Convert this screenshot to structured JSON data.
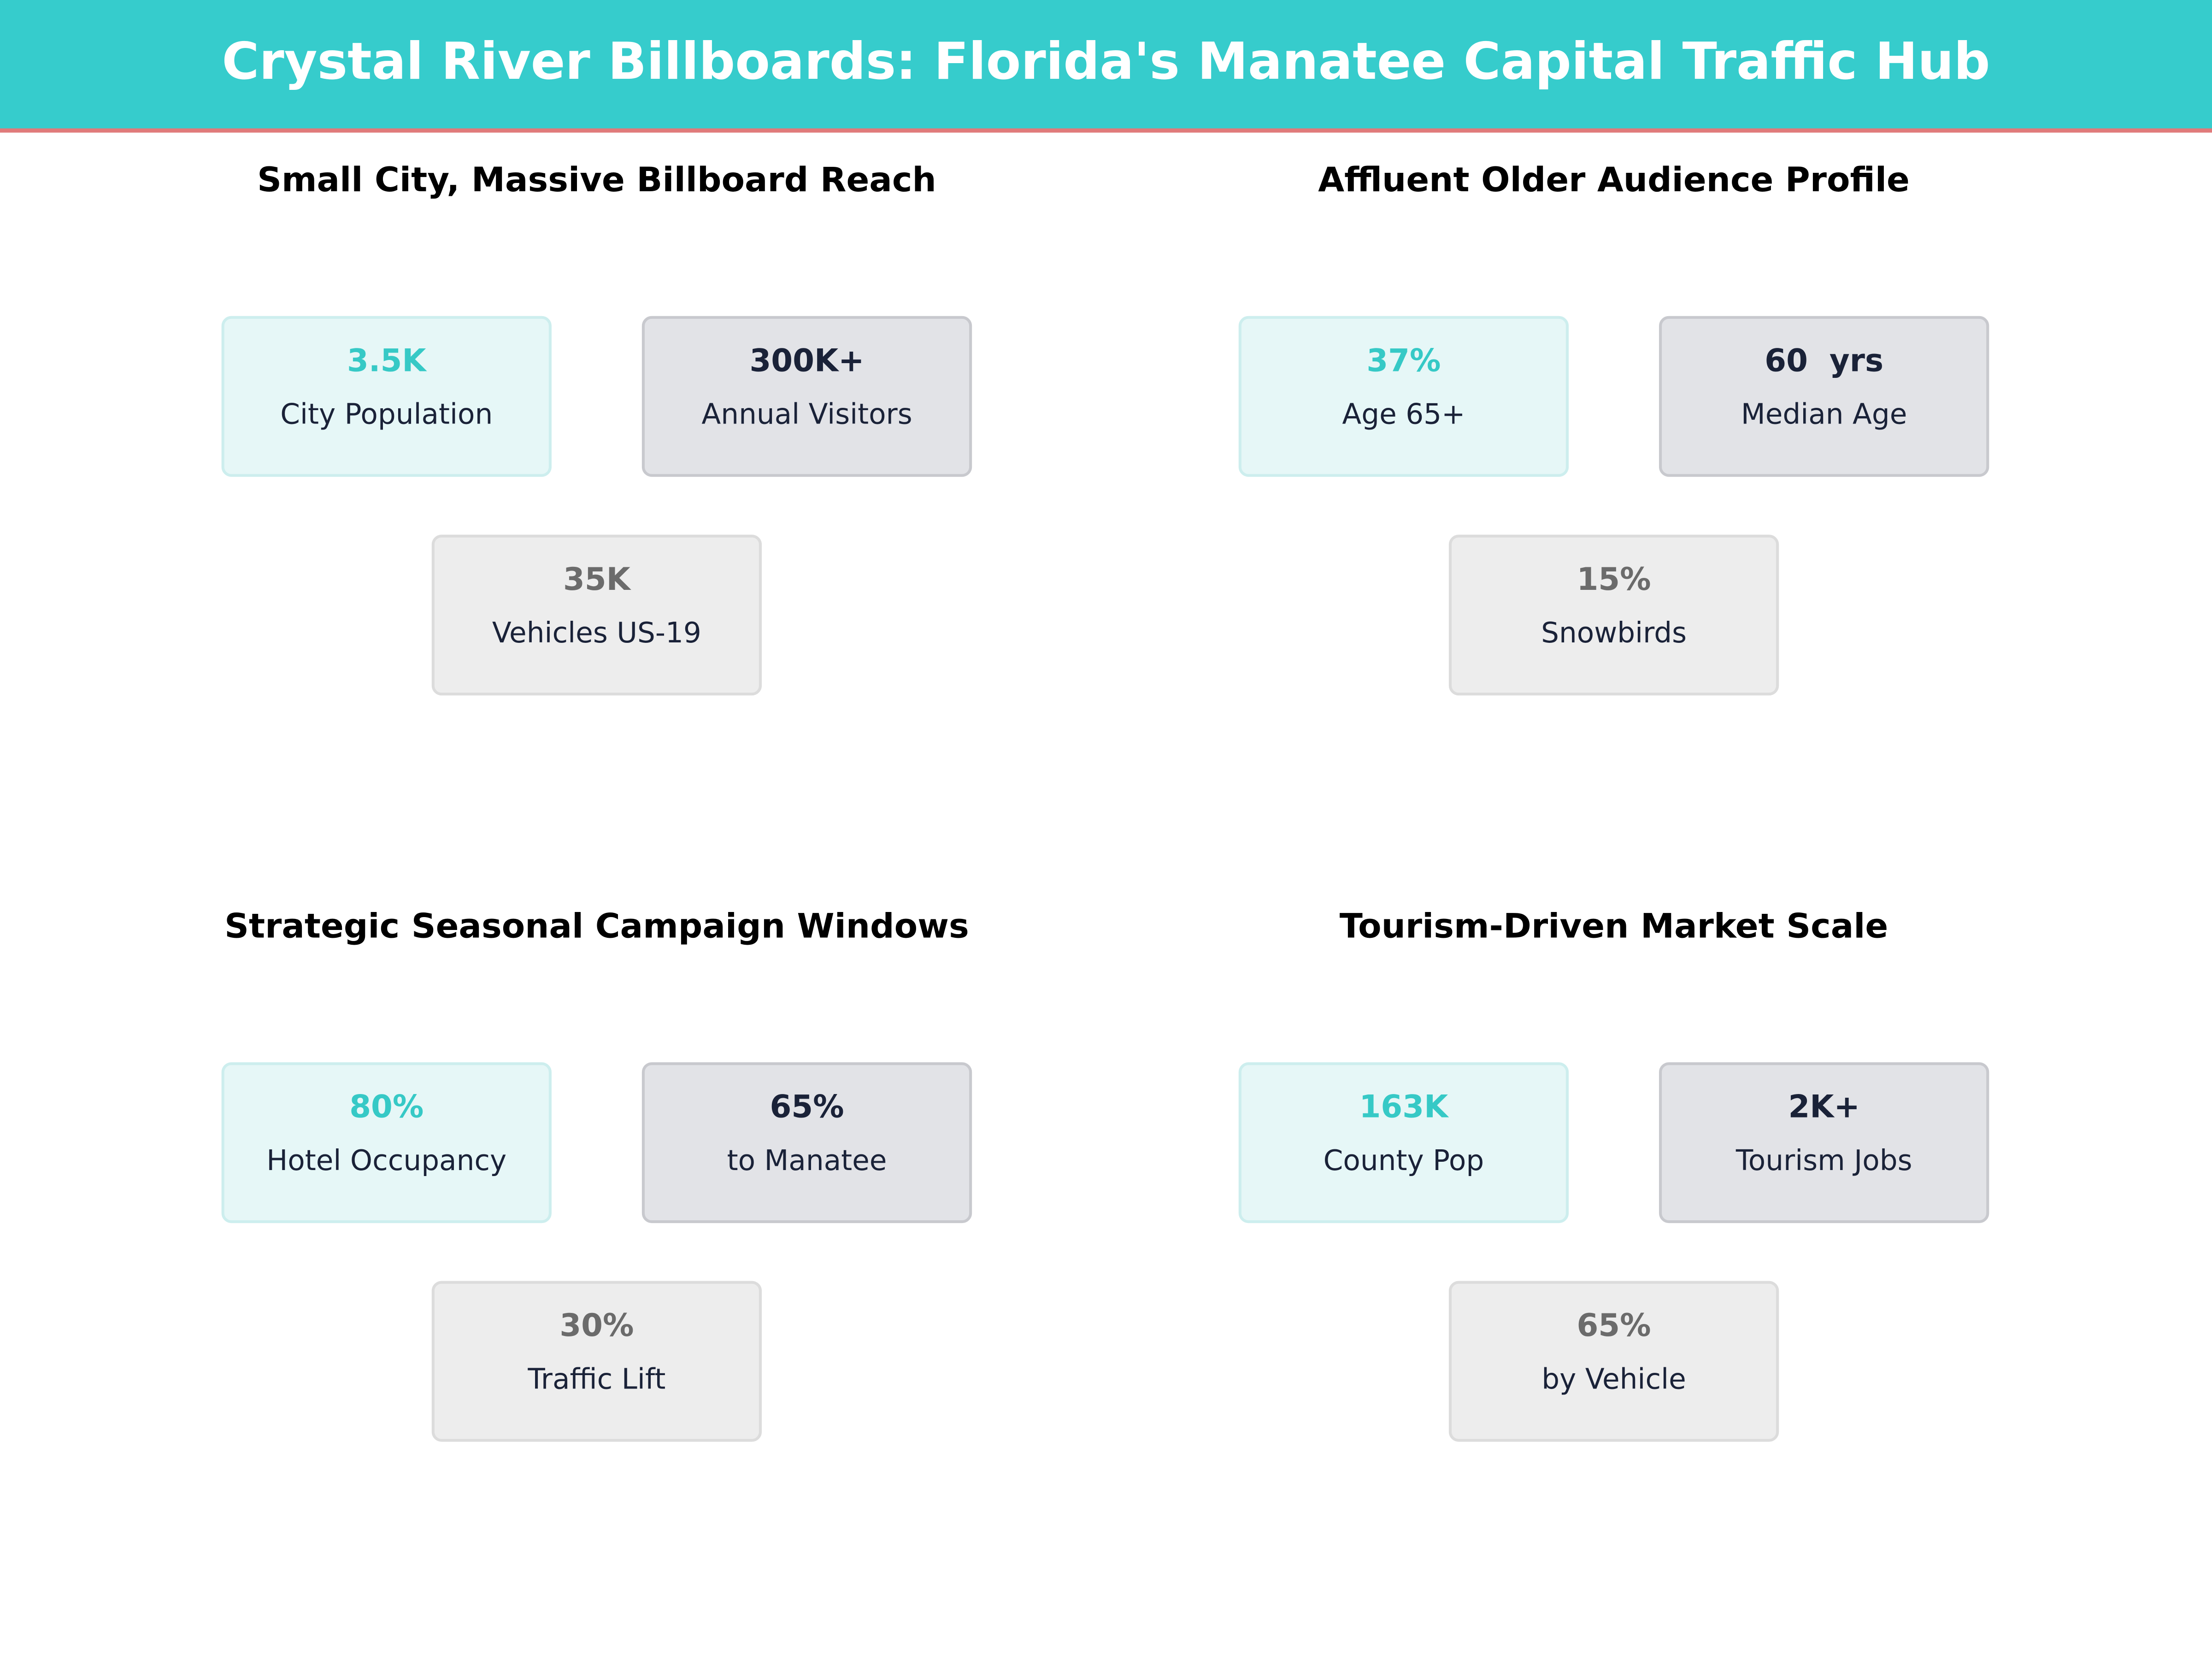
{
  "header": {
    "title": "Crystal River Billboards: Florida's Manatee Capital Traffic Hub"
  },
  "panels": [
    {
      "title": "Small City, Massive Billboard Reach",
      "cards": [
        {
          "value": "3.5K",
          "label": "City Population"
        },
        {
          "value": "300K+",
          "label": "Annual Visitors"
        },
        {
          "value": "35K",
          "label": "Vehicles US-19"
        }
      ]
    },
    {
      "title": "Affluent Older Audience Profile",
      "cards": [
        {
          "value": "37%",
          "label": "Age 65+"
        },
        {
          "value": "60  yrs",
          "label": "Median Age"
        },
        {
          "value": "15%",
          "label": "Snowbirds"
        }
      ]
    },
    {
      "title": "Strategic Seasonal Campaign Windows",
      "cards": [
        {
          "value": "80%",
          "label": "Hotel Occupancy"
        },
        {
          "value": "65%",
          "label": "to Manatee"
        },
        {
          "value": "30%",
          "label": "Traffic Lift"
        }
      ]
    },
    {
      "title": "Tourism-Driven Market Scale",
      "cards": [
        {
          "value": "163K",
          "label": "County Pop"
        },
        {
          "value": "2K+",
          "label": "Tourism Jobs"
        },
        {
          "value": "65%",
          "label": "by Vehicle"
        }
      ]
    }
  ]
}
